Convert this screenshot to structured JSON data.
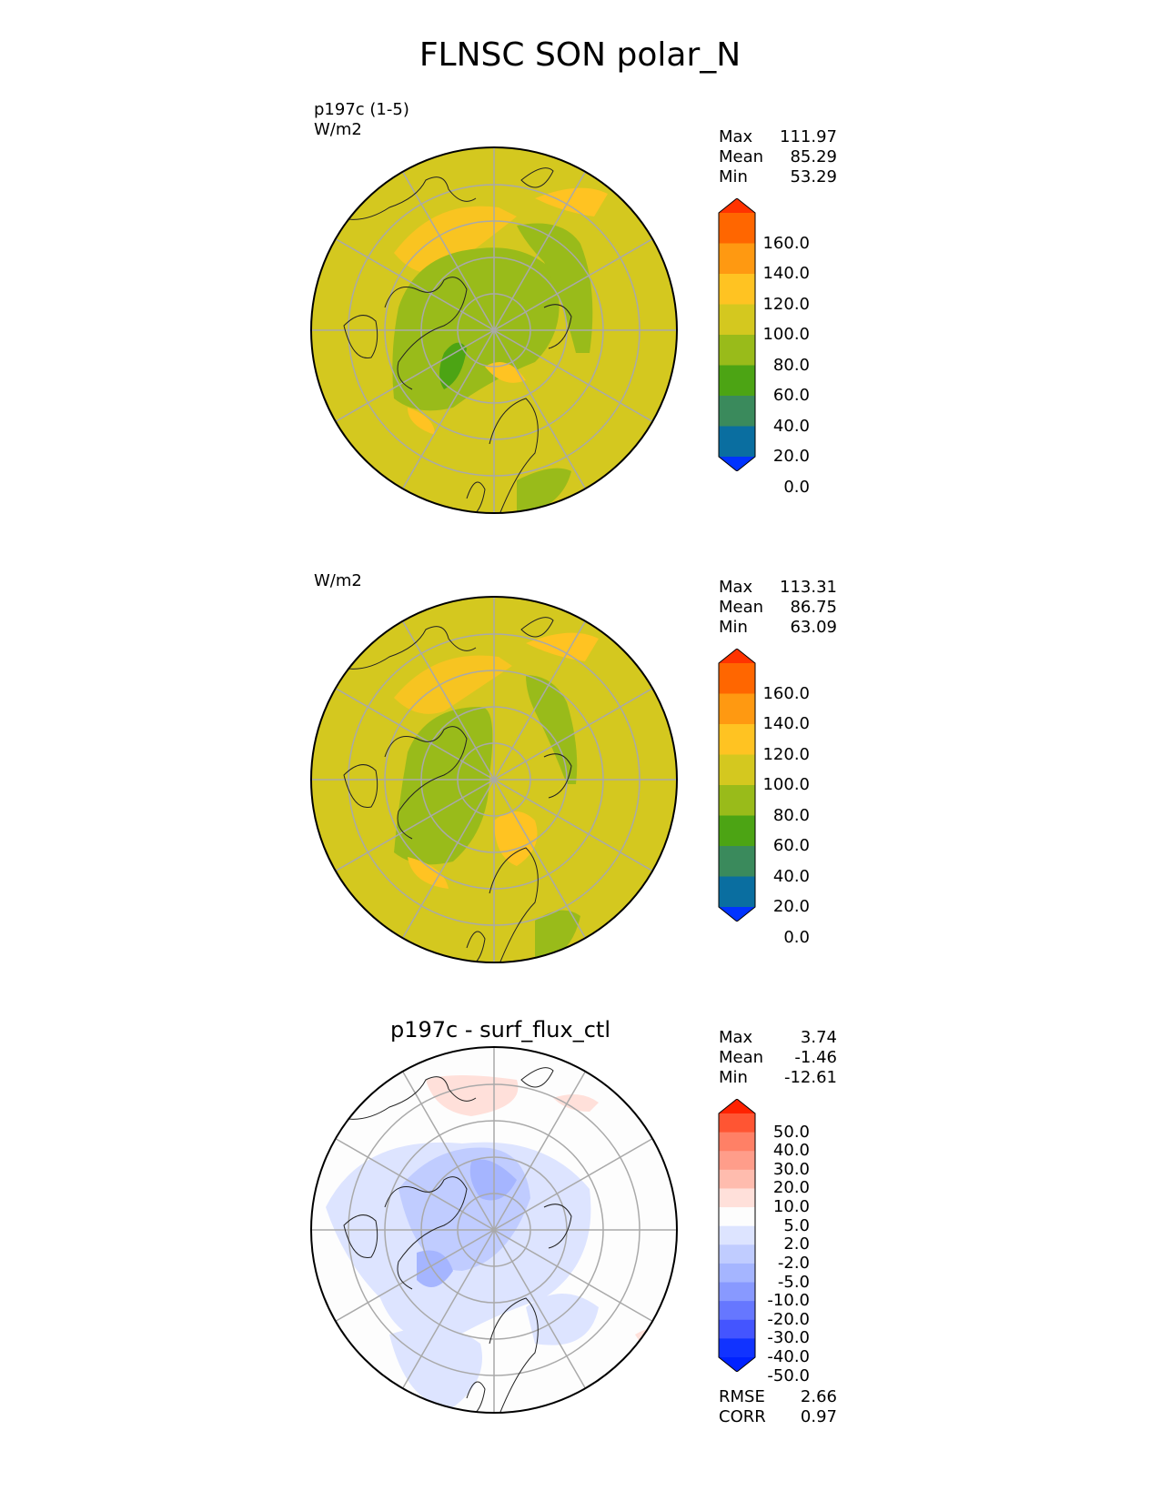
{
  "title": "FLNSC SON polar_N",
  "panels": [
    {
      "label_line1": "p197c (1-5)",
      "label_line2": "W/m2",
      "stats": {
        "max_label": "Max",
        "max": "111.97",
        "mean_label": "Mean",
        "mean": "85.29",
        "min_label": "Min",
        "min": "53.29"
      },
      "colorbar": {
        "ticks": [
          "160.0",
          "140.0",
          "120.0",
          "100.0",
          "80.0",
          "60.0",
          "40.0",
          "20.0",
          "0.0"
        ],
        "colors": [
          "#ff3300",
          "#ff6600",
          "#ff9911",
          "#ffc322",
          "#d4c81f",
          "#99bb1a",
          "#4ca414",
          "#3a8a5c",
          "#0a6ea0",
          "#0033ff"
        ]
      }
    },
    {
      "label_line1": "",
      "label_line2": "W/m2",
      "stats": {
        "max_label": "Max",
        "max": "113.31",
        "mean_label": "Mean",
        "mean": "86.75",
        "min_label": "Min",
        "min": "63.09"
      },
      "colorbar": {
        "ticks": [
          "160.0",
          "140.0",
          "120.0",
          "100.0",
          "80.0",
          "60.0",
          "40.0",
          "20.0",
          "0.0"
        ],
        "colors": [
          "#ff3300",
          "#ff6600",
          "#ff9911",
          "#ffc322",
          "#d4c81f",
          "#99bb1a",
          "#4ca414",
          "#3a8a5c",
          "#0a6ea0",
          "#0033ff"
        ]
      }
    },
    {
      "center_title": "p197c - surf_flux_ctl",
      "stats": {
        "max_label": "Max",
        "max": "3.74",
        "mean_label": "Mean",
        "mean": "-1.46",
        "min_label": "Min",
        "min": "-12.61"
      },
      "colorbar": {
        "ticks": [
          "50.0",
          "40.0",
          "30.0",
          "20.0",
          "10.0",
          "5.0",
          "2.0",
          "-2.0",
          "-5.0",
          "-10.0",
          "-20.0",
          "-30.0",
          "-40.0",
          "-50.0"
        ],
        "colors": [
          "#ff2200",
          "#ff5533",
          "#ff8066",
          "#ff9d8a",
          "#ffbcae",
          "#ffe0da",
          "#fdfdfd",
          "#dde4ff",
          "#c0ccff",
          "#a5b5ff",
          "#8899ff",
          "#6677ff",
          "#4455ff",
          "#1133ff",
          "#0022ff"
        ]
      },
      "metrics": {
        "rmse_label": "RMSE",
        "rmse": "2.66",
        "corr_label": "CORR",
        "corr": "0.97"
      }
    }
  ]
}
